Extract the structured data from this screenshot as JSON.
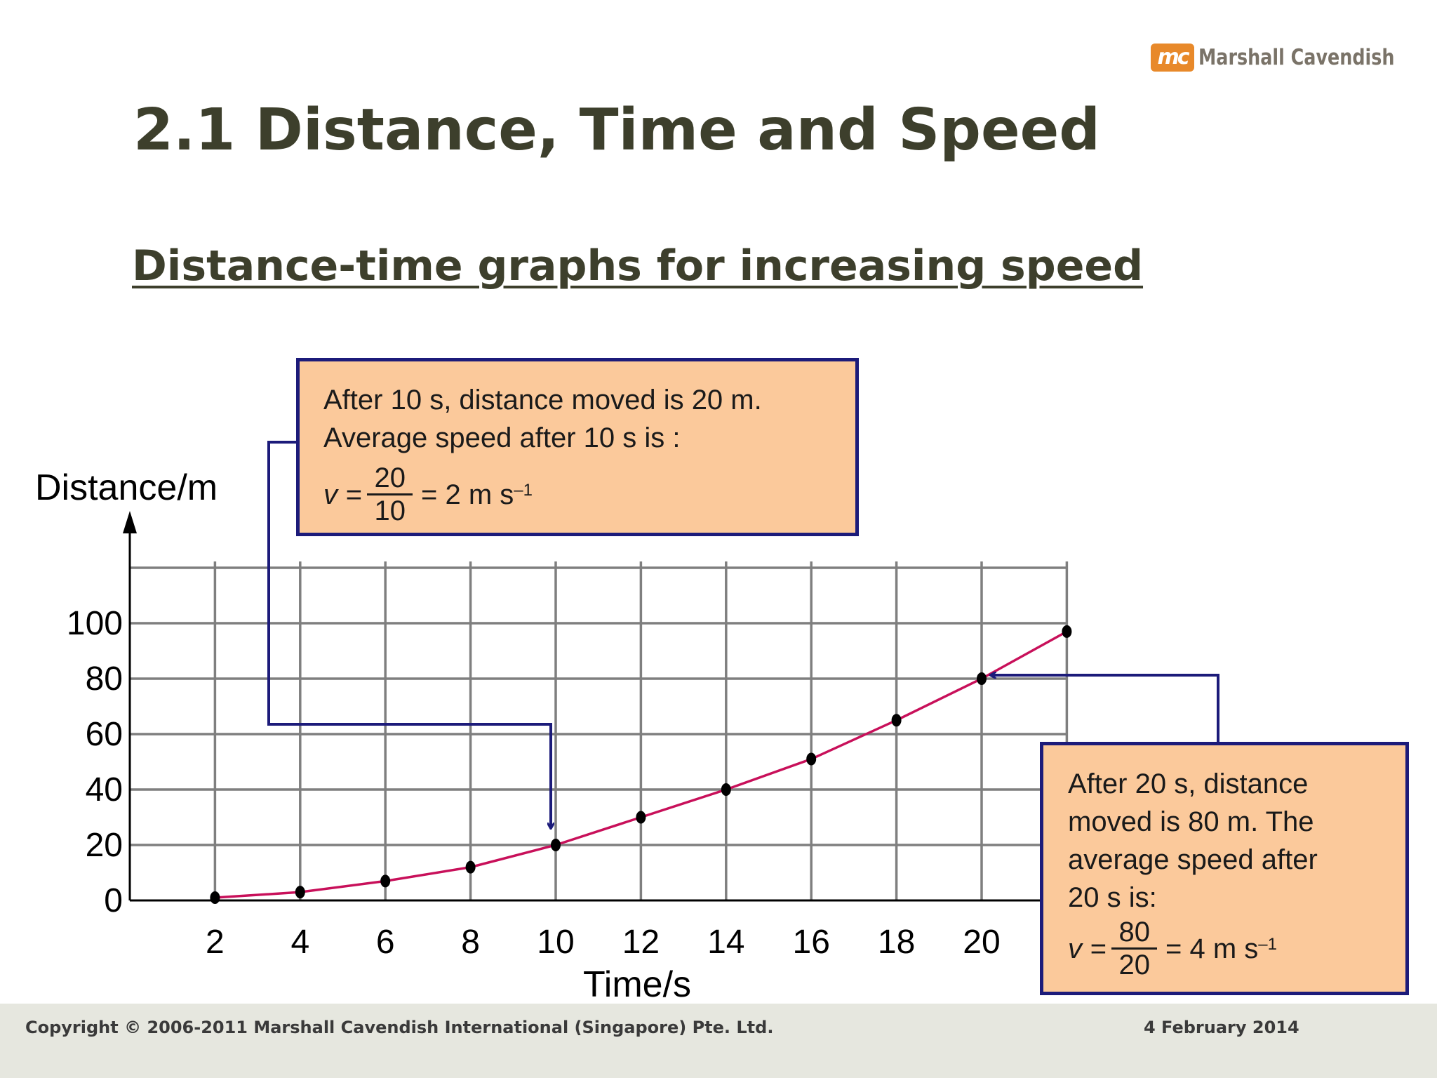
{
  "header": {
    "logo_mark": "mc",
    "logo_text": "Marshall Cavendish",
    "title": "2.1 Distance, Time and Speed",
    "subtitle": "Distance-time graphs for increasing speed"
  },
  "chart_data": {
    "type": "line",
    "xlabel": "Time/s",
    "ylabel": "Distance/m",
    "x_ticks": [
      2,
      4,
      6,
      8,
      10,
      12,
      14,
      16,
      18,
      20
    ],
    "y_ticks": [
      0,
      20,
      40,
      60,
      80,
      100
    ],
    "xlim": [
      0,
      22
    ],
    "ylim": [
      0,
      120
    ],
    "grid": true,
    "series": [
      {
        "x": [
          2,
          4,
          6,
          8,
          10,
          12,
          14,
          16,
          18,
          20,
          22
        ],
        "y": [
          1,
          3,
          7,
          12,
          20,
          30,
          40,
          51,
          65,
          80,
          97
        ]
      }
    ],
    "colors": {
      "curve": "#c8105a",
      "grid": "#7f7f7f",
      "arrow": "#1c1b7a",
      "axis": "#000000"
    }
  },
  "callouts": [
    {
      "line1": "After 10 s, distance moved is 20 m.",
      "line2": "Average speed after 10 s is :",
      "var": "v =",
      "num": "20",
      "den": "10",
      "result": "= 2 m s",
      "exp": "–1"
    },
    {
      "line1": "After 20 s, distance",
      "line2": "moved is 80 m. The",
      "line3": "average speed after",
      "line4": "20 s is:",
      "var": "v =",
      "num": "80",
      "den": "20",
      "result": "= 4 m s",
      "exp": "–1"
    }
  ],
  "footer": {
    "copyright": "Copyright © 2006-2011 Marshall Cavendish International (Singapore) Pte. Ltd.",
    "date": "4 February 2014"
  }
}
